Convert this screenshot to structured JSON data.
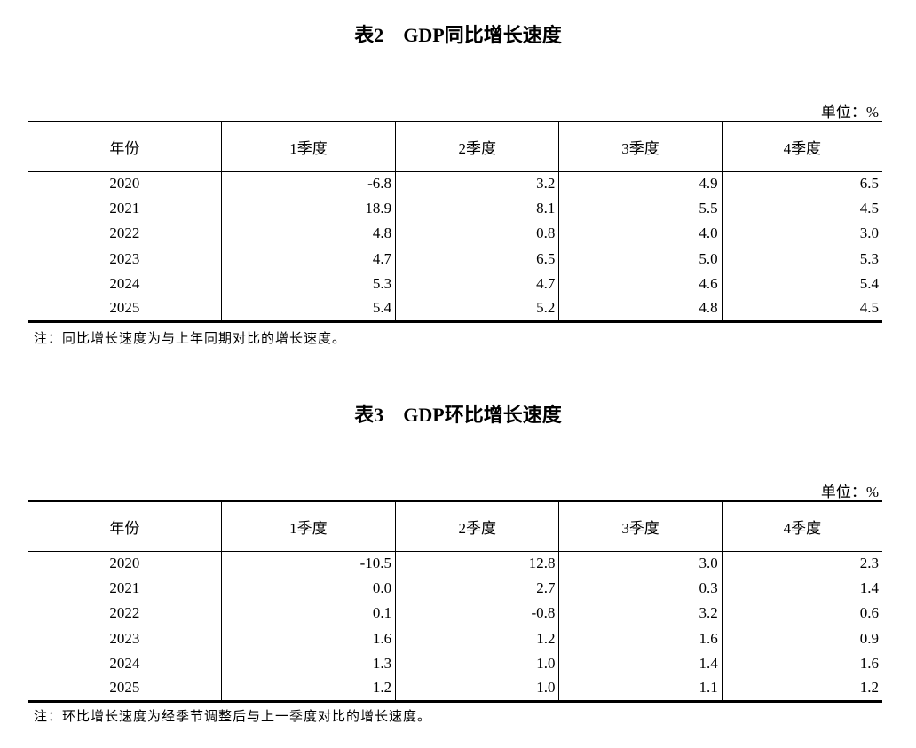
{
  "tables": [
    {
      "title": "表2　GDP同比增长速度",
      "unit": "单位：%",
      "headers": [
        "年份",
        "1季度",
        "2季度",
        "3季度",
        "4季度"
      ],
      "rows": [
        [
          "2020",
          "-6.8",
          "3.2",
          "4.9",
          "6.5"
        ],
        [
          "2021",
          "18.9",
          "8.1",
          "5.5",
          "4.5"
        ],
        [
          "2022",
          "4.8",
          "0.8",
          "4.0",
          "3.0"
        ],
        [
          "2023",
          "4.7",
          "6.5",
          "5.0",
          "5.3"
        ],
        [
          "2024",
          "5.3",
          "4.7",
          "4.6",
          "5.4"
        ],
        [
          "2025",
          "5.4",
          "5.2",
          "4.8",
          "4.5"
        ]
      ],
      "note": "注：同比增长速度为与上年同期对比的增长速度。"
    },
    {
      "title": "表3　GDP环比增长速度",
      "unit": "单位：%",
      "headers": [
        "年份",
        "1季度",
        "2季度",
        "3季度",
        "4季度"
      ],
      "rows": [
        [
          "2020",
          "-10.5",
          "12.8",
          "3.0",
          "2.3"
        ],
        [
          "2021",
          "0.0",
          "2.7",
          "0.3",
          "1.4"
        ],
        [
          "2022",
          "0.1",
          "-0.8",
          "3.2",
          "0.6"
        ],
        [
          "2023",
          "1.6",
          "1.2",
          "1.6",
          "0.9"
        ],
        [
          "2024",
          "1.3",
          "1.0",
          "1.4",
          "1.6"
        ],
        [
          "2025",
          "1.2",
          "1.0",
          "1.1",
          "1.2"
        ]
      ],
      "note": "注：环比增长速度为经季节调整后与上一季度对比的增长速度。"
    }
  ]
}
